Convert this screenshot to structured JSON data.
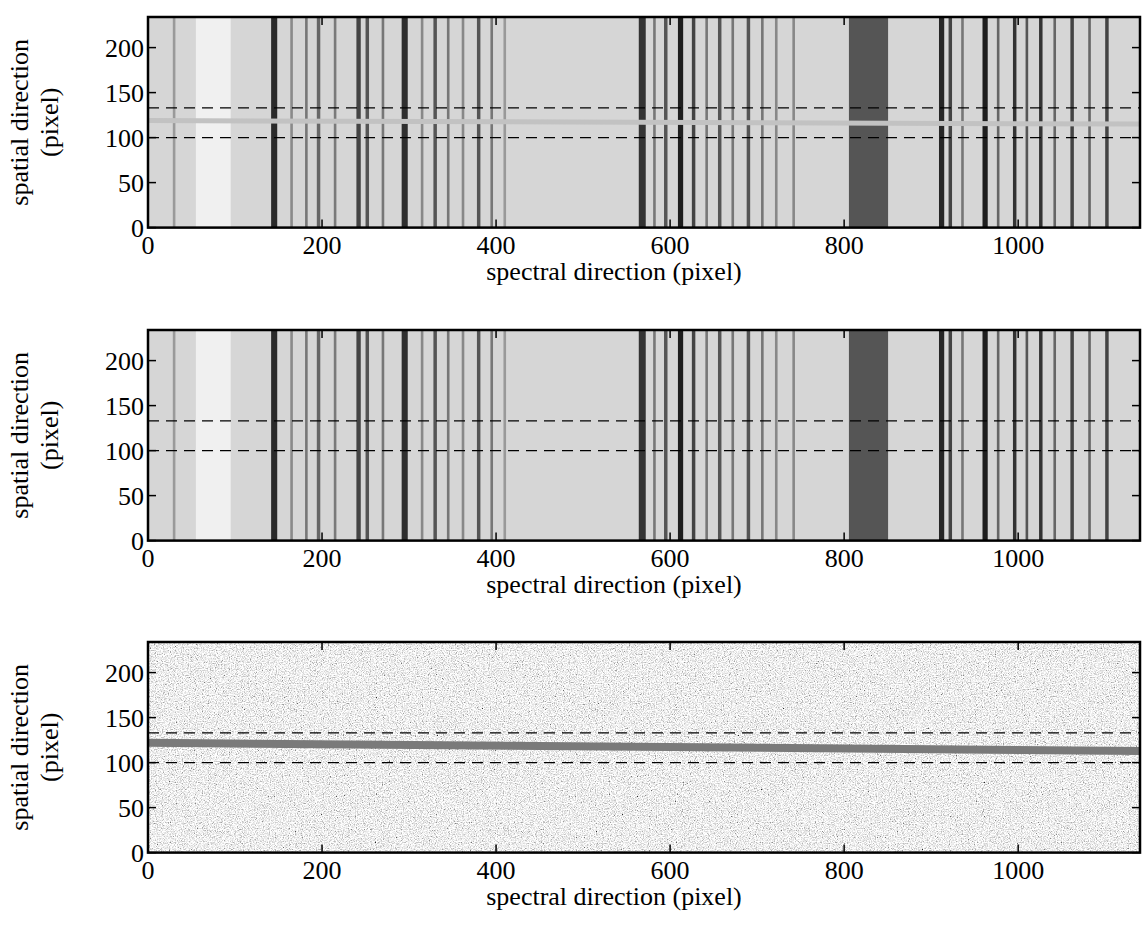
{
  "chart_data": [
    {
      "type": "image",
      "xlabel": "spectral direction (pixel)",
      "ylabel": "spatial direction (pixel)",
      "xlim": [
        0,
        1140
      ],
      "ylim": [
        0,
        234
      ],
      "xticks": [
        0,
        200,
        400,
        600,
        800,
        1000
      ],
      "yticks": [
        0,
        50,
        100,
        150,
        200
      ],
      "hlines": [
        100,
        133
      ],
      "line_style": "dashed",
      "color": "#d6d6d6",
      "lines": {
        "x": [
          30,
          75,
          145,
          165,
          182,
          196,
          215,
          242,
          252,
          270,
          295,
          315,
          330,
          345,
          362,
          380,
          395,
          410,
          568,
          582,
          595,
          612,
          627,
          642,
          657,
          672,
          690,
          706,
          722,
          742,
          828,
          912,
          922,
          936,
          962,
          977,
          996,
          1010,
          1026,
          1042,
          1062,
          1082,
          1102
        ],
        "width": [
          3,
          40,
          7,
          3,
          3,
          4,
          3,
          5,
          4,
          3,
          7,
          3,
          4,
          3,
          3,
          4,
          3,
          3,
          8,
          3,
          4,
          6,
          4,
          3,
          4,
          3,
          4,
          3,
          3,
          3,
          45,
          6,
          4,
          3,
          6,
          3,
          4,
          3,
          4,
          3,
          4,
          3,
          4
        ],
        "colors": [
          "#9a9a9a",
          "#f0f0f0",
          "#2a2a2a",
          "#8a8a8a",
          "#777777",
          "#666666",
          "#7a7a7a",
          "#444444",
          "#555555",
          "#777777",
          "#2e2e2e",
          "#888888",
          "#555555",
          "#777777",
          "#888888",
          "#555555",
          "#777777",
          "#999999",
          "#333333",
          "#777777",
          "#555555",
          "#1e1e1e",
          "#444444",
          "#777777",
          "#555555",
          "#777777",
          "#555555",
          "#777777",
          "#888888",
          "#888888",
          "#555555",
          "#262626",
          "#444444",
          "#777777",
          "#1e1e1e",
          "#666666",
          "#333333",
          "#555555",
          "#333333",
          "#666666",
          "#444444",
          "#666666",
          "#444444"
        ]
      },
      "trace": {
        "x": [
          0,
          1140
        ],
        "y": [
          119,
          115
        ],
        "color": "#c2c2c2"
      }
    },
    {
      "type": "image",
      "xlabel": "spectral direction (pixel)",
      "ylabel": "spatial direction (pixel)",
      "xlim": [
        0,
        1140
      ],
      "ylim": [
        0,
        234
      ],
      "xticks": [
        0,
        200,
        400,
        600,
        800,
        1000
      ],
      "yticks": [
        0,
        50,
        100,
        150,
        200
      ],
      "hlines": [
        100,
        133
      ],
      "line_style": "dashed",
      "color": "#d6d6d6",
      "lines": {
        "x": [
          30,
          75,
          145,
          165,
          182,
          196,
          215,
          242,
          252,
          270,
          295,
          315,
          330,
          345,
          362,
          380,
          395,
          410,
          568,
          582,
          595,
          612,
          627,
          642,
          657,
          672,
          690,
          706,
          722,
          742,
          828,
          912,
          922,
          936,
          962,
          977,
          996,
          1010,
          1026,
          1042,
          1062,
          1082,
          1102
        ],
        "width": [
          3,
          40,
          7,
          3,
          3,
          4,
          3,
          5,
          4,
          3,
          7,
          3,
          4,
          3,
          3,
          4,
          3,
          3,
          8,
          3,
          4,
          6,
          4,
          3,
          4,
          3,
          4,
          3,
          3,
          3,
          45,
          6,
          4,
          3,
          6,
          3,
          4,
          3,
          4,
          3,
          4,
          3,
          4
        ],
        "colors": [
          "#9a9a9a",
          "#f0f0f0",
          "#2a2a2a",
          "#8a8a8a",
          "#777777",
          "#666666",
          "#7a7a7a",
          "#444444",
          "#555555",
          "#777777",
          "#2e2e2e",
          "#888888",
          "#555555",
          "#777777",
          "#888888",
          "#555555",
          "#777777",
          "#999999",
          "#333333",
          "#777777",
          "#555555",
          "#1e1e1e",
          "#444444",
          "#777777",
          "#555555",
          "#777777",
          "#555555",
          "#777777",
          "#888888",
          "#888888",
          "#555555",
          "#262626",
          "#444444",
          "#777777",
          "#1e1e1e",
          "#666666",
          "#333333",
          "#555555",
          "#333333",
          "#666666",
          "#444444",
          "#666666",
          "#444444"
        ]
      }
    },
    {
      "type": "residual",
      "xlabel": "spectral direction (pixel)",
      "ylabel": "spatial direction (pixel)",
      "xlim": [
        0,
        1140
      ],
      "ylim": [
        0,
        234
      ],
      "xticks": [
        0,
        200,
        400,
        600,
        800,
        1000
      ],
      "yticks": [
        0,
        50,
        100,
        150,
        200
      ],
      "hlines": [
        100,
        133
      ],
      "line_style": "dashed",
      "color": "#ffffff",
      "trace": {
        "x": [
          0,
          1140
        ],
        "y": [
          122,
          113
        ],
        "color": "#7a7a7a"
      }
    }
  ]
}
